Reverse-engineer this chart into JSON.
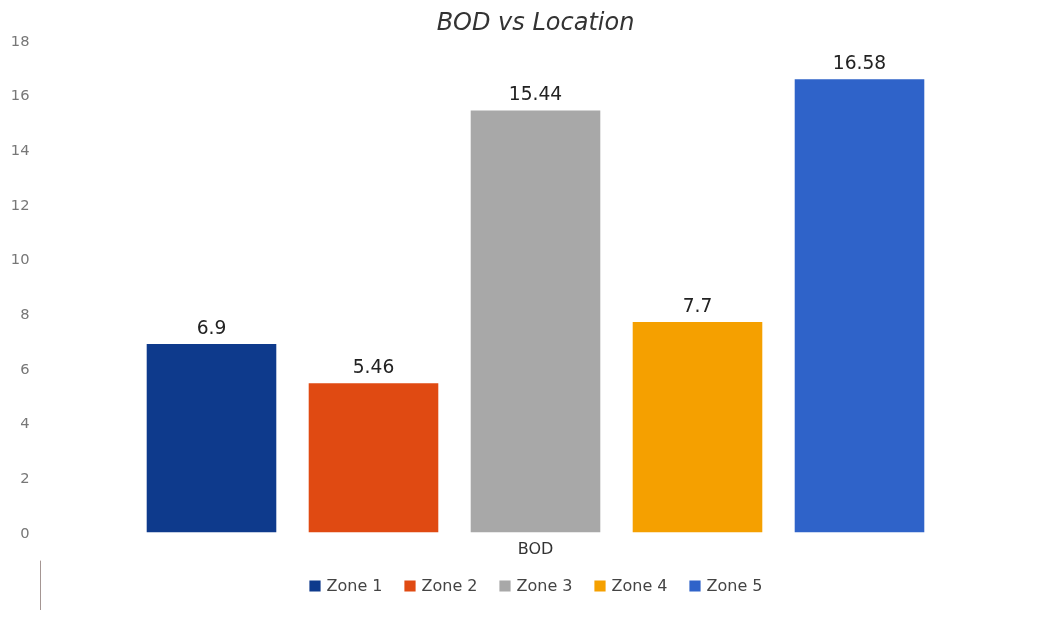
{
  "chart_data": {
    "type": "bar",
    "title": "BOD vs Location",
    "xlabel": "BOD",
    "categories": [
      null
    ],
    "series": [
      {
        "name": "Zone 1",
        "color": "#0e3a8c",
        "values": [
          6.9
        ]
      },
      {
        "name": "Zone 2",
        "color": "#e04a12",
        "values": [
          5.46
        ]
      },
      {
        "name": "Zone 3",
        "color": "#a8a8a8",
        "values": [
          15.44
        ]
      },
      {
        "name": "Zone 4",
        "color": "#f5a000",
        "values": [
          7.7
        ]
      },
      {
        "name": "Zone 5",
        "color": "#2f63c9",
        "values": [
          16.58
        ]
      }
    ],
    "ylim": [
      0,
      18
    ],
    "yticks": [
      0,
      2,
      4,
      6,
      8,
      10,
      12,
      14,
      16,
      18
    ],
    "grid": false,
    "legend": "bottom",
    "data_labels": true
  }
}
